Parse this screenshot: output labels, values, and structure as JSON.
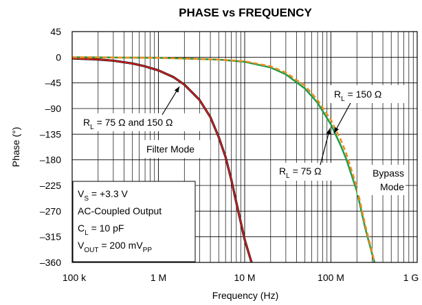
{
  "chart_data": {
    "type": "line",
    "title": "PHASE vs FREQUENCY",
    "xlabel": "Frequency (Hz)",
    "ylabel": "Phase (°)",
    "x_scale": "log",
    "xlim": [
      100000,
      1000000000
    ],
    "ylim": [
      -360,
      45
    ],
    "x_ticks": [
      {
        "value": 100000,
        "label": "100 k"
      },
      {
        "value": 1000000,
        "label": "1 M"
      },
      {
        "value": 10000000,
        "label": "10 M"
      },
      {
        "value": 100000000,
        "label": "100 M"
      },
      {
        "value": 1000000000,
        "label": "1 G"
      }
    ],
    "y_ticks": [
      {
        "value": 45,
        "label": "45"
      },
      {
        "value": 0,
        "label": "0"
      },
      {
        "value": -45,
        "label": "–45"
      },
      {
        "value": -90,
        "label": "–90"
      },
      {
        "value": -135,
        "label": "–135"
      },
      {
        "value": -180,
        "label": "–180"
      },
      {
        "value": -225,
        "label": "–225"
      },
      {
        "value": -270,
        "label": "–270"
      },
      {
        "value": -315,
        "label": "–315"
      },
      {
        "value": -360,
        "label": "–360"
      }
    ],
    "grid": true,
    "series": [
      {
        "color": "#000000",
        "dash": "solid",
        "x": [
          100000,
          200000,
          300000,
          500000,
          700000,
          1000000,
          1500000,
          2000000,
          3000000,
          4000000,
          5000000,
          6000000,
          7000000,
          8000000,
          10000000,
          12000000
        ],
        "y": [
          -2,
          -4,
          -6,
          -11,
          -16,
          -23,
          -35,
          -48,
          -75,
          -105,
          -140,
          -175,
          -215,
          -255,
          -320,
          -360
        ]
      },
      {
        "color": "#d42020",
        "dash": "solid",
        "x": [
          100000,
          200000,
          300000,
          500000,
          700000,
          1000000,
          1500000,
          2000000,
          3000000,
          4000000,
          5000000,
          6000000,
          7000000,
          8000000,
          10000000,
          12000000
        ],
        "y": [
          -2,
          -4,
          -6,
          -11,
          -16,
          -23,
          -35,
          -48,
          -75,
          -105,
          -140,
          -175,
          -215,
          -255,
          -320,
          -360
        ]
      },
      {
        "color": "#1e9e4a",
        "dash": "solid",
        "x": [
          100000,
          1000000,
          5000000,
          10000000,
          20000000,
          30000000,
          50000000,
          70000000,
          100000000,
          130000000,
          150000000,
          200000000,
          250000000,
          300000000,
          320000000
        ],
        "y": [
          0,
          -1,
          -4,
          -8,
          -18,
          -30,
          -55,
          -80,
          -118,
          -155,
          -178,
          -235,
          -300,
          -345,
          -360
        ]
      },
      {
        "color": "#f28a1e",
        "dash": "dashed",
        "x": [
          100000,
          1000000,
          5000000,
          10000000,
          20000000,
          30000000,
          50000000,
          70000000,
          100000000,
          130000000,
          150000000,
          200000000,
          250000000,
          300000000,
          320000000
        ],
        "y": [
          0,
          -1,
          -4,
          -7,
          -16,
          -27,
          -50,
          -75,
          -110,
          -145,
          -168,
          -228,
          -295,
          -342,
          -360
        ]
      }
    ],
    "annotations": [
      {
        "id": "ann-rl75-150",
        "parts": [
          {
            "t": "R"
          },
          {
            "t": "L",
            "sub": true
          },
          {
            "t": " = 75 Ω and 150 Ω"
          }
        ]
      },
      {
        "id": "ann-filter",
        "parts": [
          {
            "t": "Filter Mode"
          }
        ]
      },
      {
        "id": "ann-rl150",
        "parts": [
          {
            "t": "R"
          },
          {
            "t": "L",
            "sub": true
          },
          {
            "t": " = 150 Ω"
          }
        ]
      },
      {
        "id": "ann-rl75",
        "parts": [
          {
            "t": "R"
          },
          {
            "t": "L",
            "sub": true
          },
          {
            "t": " = 75 Ω"
          }
        ]
      },
      {
        "id": "ann-bypass-1",
        "parts": [
          {
            "t": "Bypass"
          }
        ]
      },
      {
        "id": "ann-bypass-2",
        "parts": [
          {
            "t": "Mode"
          }
        ]
      }
    ],
    "conditions": [
      [
        {
          "t": "V"
        },
        {
          "t": "S",
          "sub": true
        },
        {
          "t": " = +3.3 V"
        }
      ],
      [
        {
          "t": "AC-Coupled Output"
        }
      ],
      [
        {
          "t": "C"
        },
        {
          "t": "L",
          "sub": true
        },
        {
          "t": " = 10 pF"
        }
      ],
      [
        {
          "t": "V"
        },
        {
          "t": "OUT",
          "sub": true
        },
        {
          "t": " = 200 mV"
        },
        {
          "t": "PP",
          "sub": true
        }
      ]
    ]
  }
}
